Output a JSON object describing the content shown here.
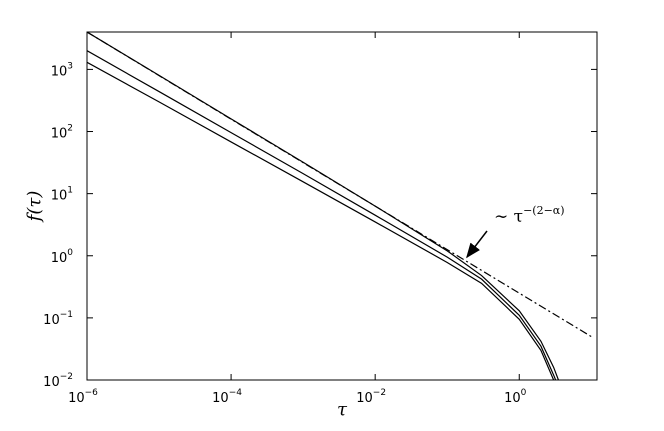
{
  "chart_data": {
    "type": "line",
    "log_x": true,
    "log_y": true,
    "xlabel": "τ",
    "ylabel": "f(τ)",
    "xlim": [
      1e-06,
      12
    ],
    "ylim": [
      0.01,
      4000
    ],
    "xticks": [
      {
        "value": 1e-06,
        "label": "10",
        "exp": "−6"
      },
      {
        "value": 0.0001,
        "label": "10",
        "exp": "−4"
      },
      {
        "value": 0.01,
        "label": "10",
        "exp": "−2"
      },
      {
        "value": 1,
        "label": "10",
        "exp": "0"
      }
    ],
    "yticks": [
      {
        "value": 0.01,
        "label": "10",
        "exp": "−2"
      },
      {
        "value": 0.1,
        "label": "10",
        "exp": "−1"
      },
      {
        "value": 1,
        "label": "10",
        "exp": "0"
      },
      {
        "value": 10,
        "label": "10",
        "exp": "1"
      },
      {
        "value": 100,
        "label": "10",
        "exp": "2"
      },
      {
        "value": 1000,
        "label": "10",
        "exp": "3"
      }
    ],
    "annotation": {
      "text": "∼ τ",
      "exp": "−(2−α)"
    },
    "series": [
      {
        "color": "#000000",
        "linestyle": "solid",
        "x": [
          1e-06,
          1e-05,
          0.0001,
          0.001,
          0.01,
          0.1,
          0.3,
          1,
          2,
          3,
          3.5
        ],
        "values": [
          4000,
          800,
          160,
          32,
          6.3,
          1.2,
          0.48,
          0.13,
          0.042,
          0.016,
          0.01
        ]
      },
      {
        "color": "#000000",
        "linestyle": "solid",
        "x": [
          1e-06,
          1e-05,
          0.0001,
          0.001,
          0.01,
          0.1,
          0.3,
          1,
          2,
          3,
          3.2
        ],
        "values": [
          2000,
          440,
          96,
          21,
          4.5,
          0.95,
          0.42,
          0.11,
          0.035,
          0.012,
          0.01
        ]
      },
      {
        "color": "#000000",
        "linestyle": "solid",
        "x": [
          1e-06,
          1e-05,
          0.0001,
          0.001,
          0.01,
          0.1,
          0.3,
          1,
          2,
          3
        ],
        "values": [
          1300,
          300,
          68,
          15.5,
          3.5,
          0.78,
          0.36,
          0.095,
          0.03,
          0.01
        ]
      },
      {
        "color": "#000000",
        "linestyle": "dashdot",
        "x": [
          1e-06,
          0.0001,
          0.01,
          1,
          10
        ],
        "values": [
          4000,
          158,
          6.3,
          0.25,
          0.05
        ]
      }
    ]
  }
}
